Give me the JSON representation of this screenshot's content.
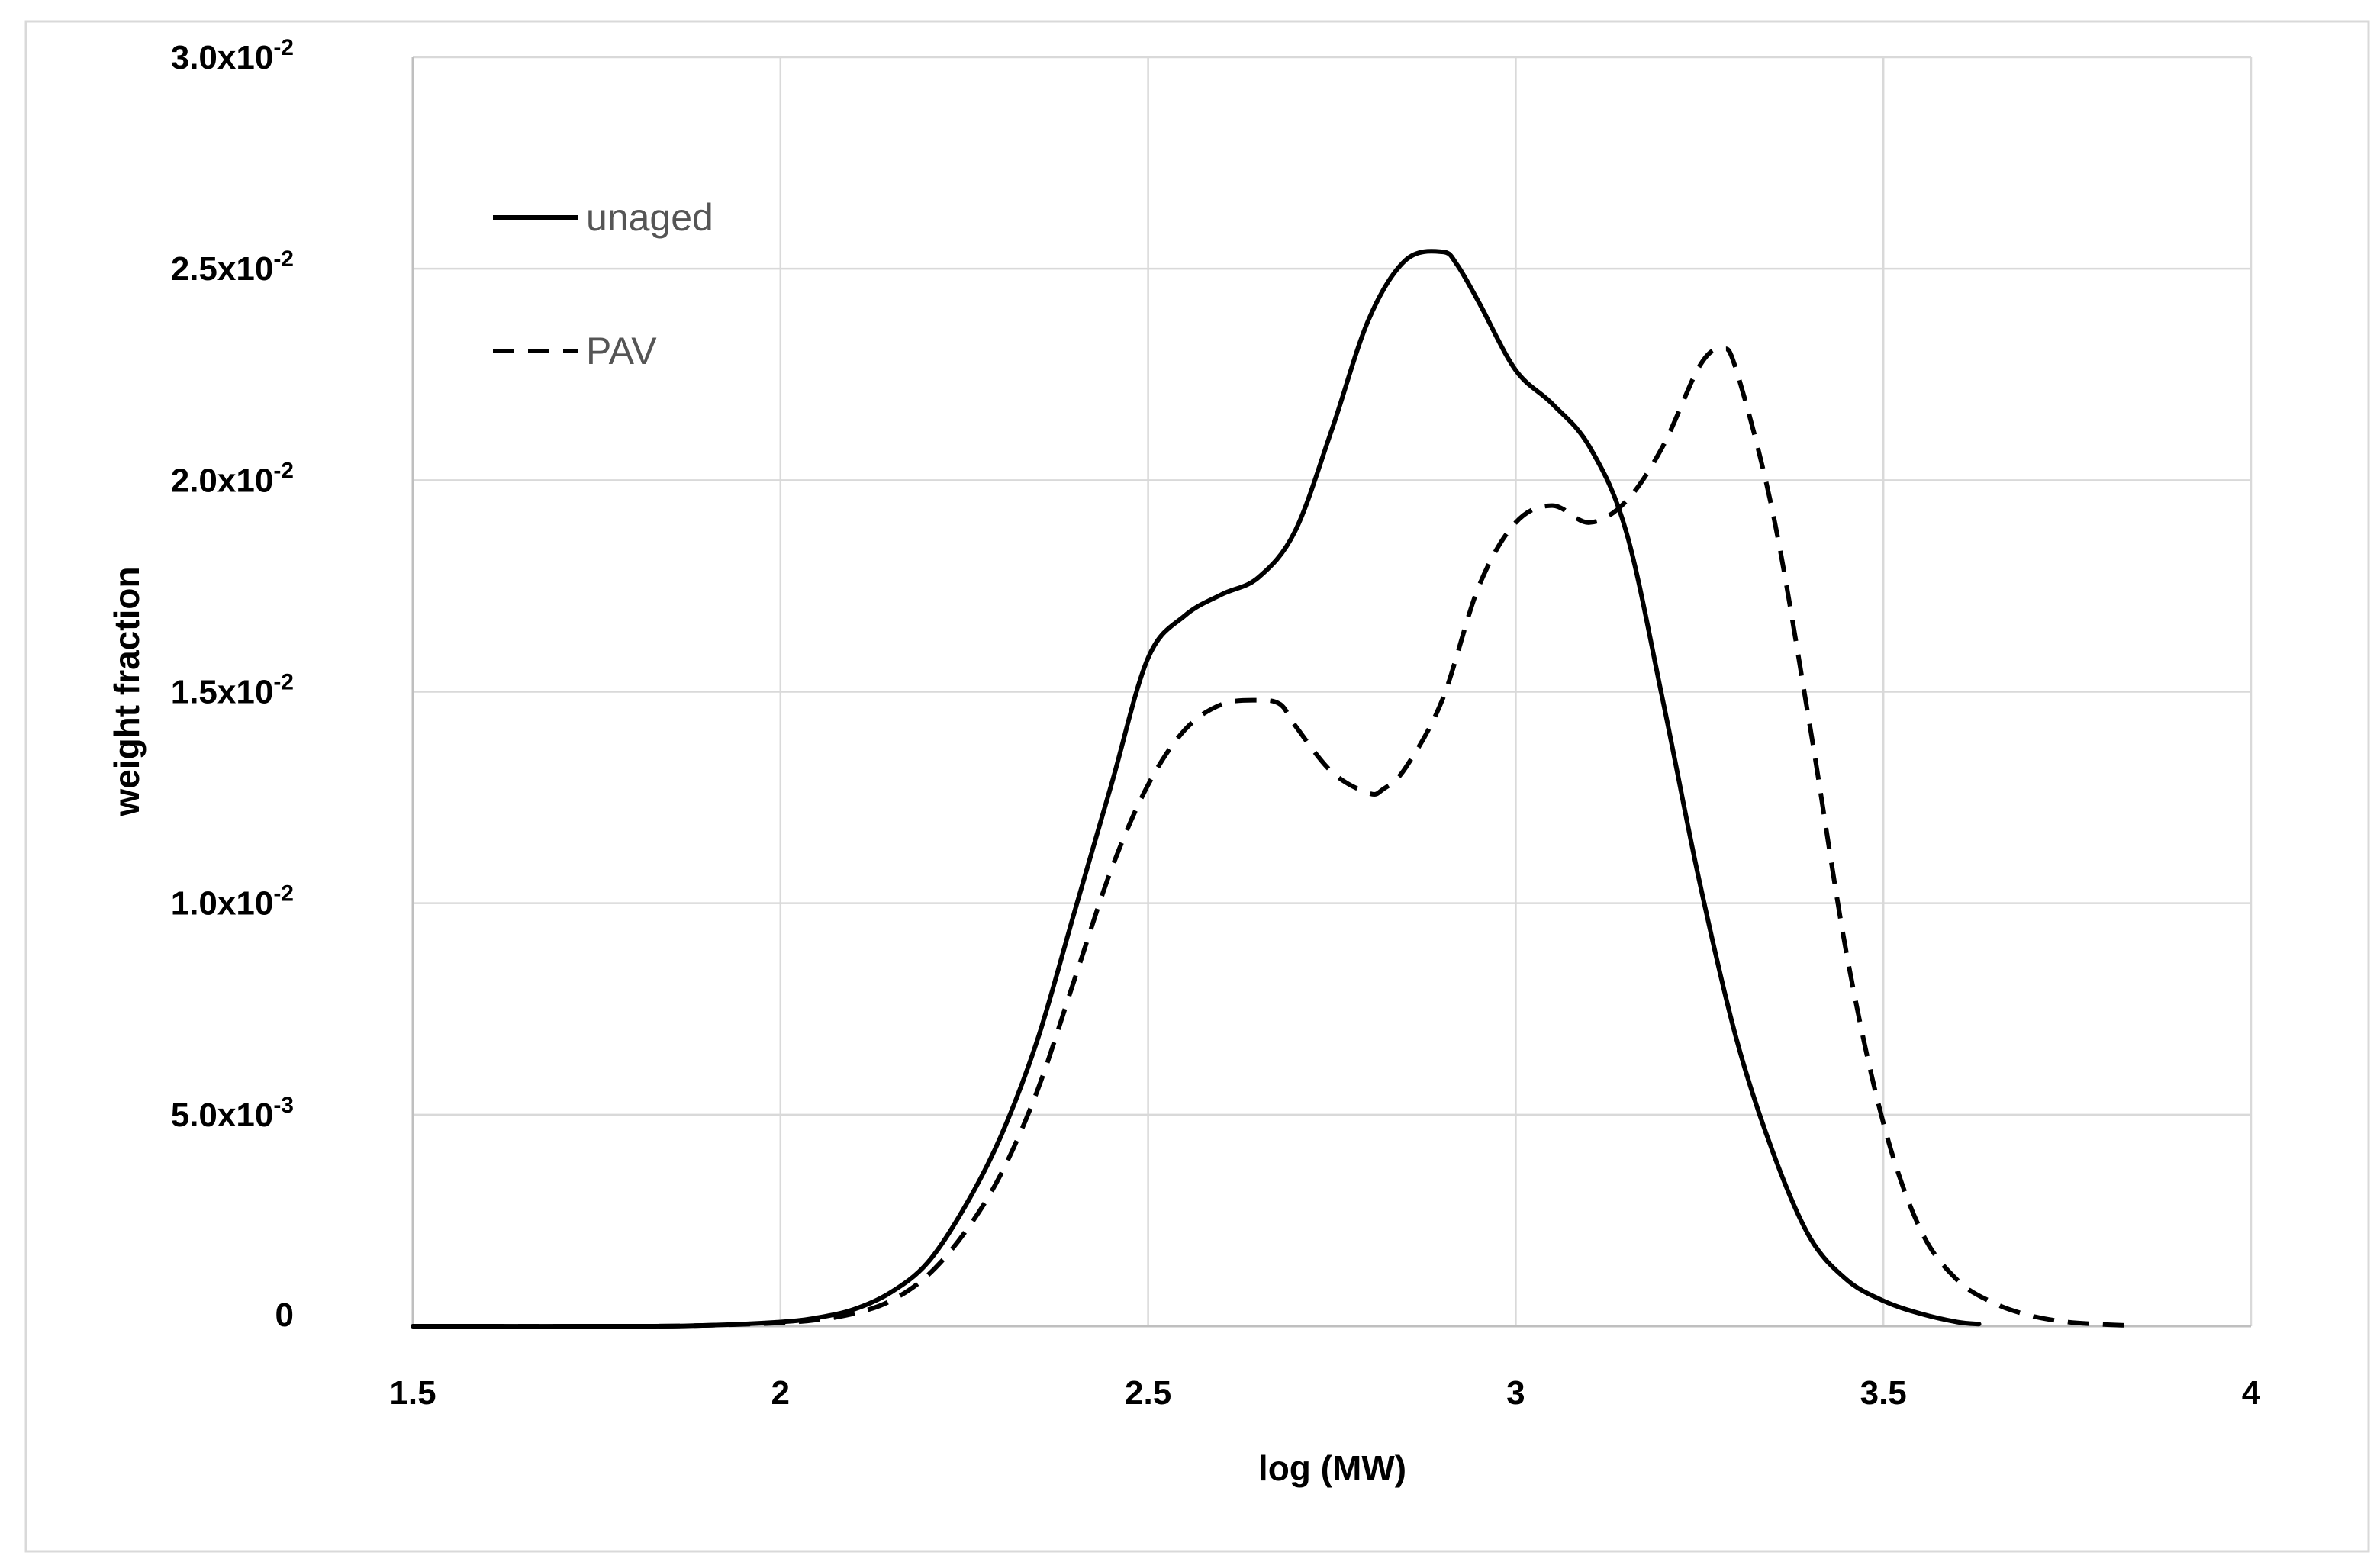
{
  "chart_data": {
    "type": "line",
    "title": "",
    "xlabel": "log (MW)",
    "ylabel": "weight fraction",
    "xlim": [
      1.5,
      4
    ],
    "ylim": [
      0,
      0.03
    ],
    "grid": true,
    "legend_position": "top-left",
    "x_ticks": [
      {
        "value": 1.5,
        "label": "1.5"
      },
      {
        "value": 2,
        "label": "2"
      },
      {
        "value": 2.5,
        "label": "2.5"
      },
      {
        "value": 3,
        "label": "3"
      },
      {
        "value": 3.5,
        "label": "3.5"
      },
      {
        "value": 4,
        "label": "4"
      }
    ],
    "y_ticks": [
      {
        "value": 0,
        "mantissa": "0",
        "exponent": ""
      },
      {
        "value": 0.005,
        "mantissa": "5.0x10",
        "exponent": "-3"
      },
      {
        "value": 0.01,
        "mantissa": "1.0x10",
        "exponent": "-2"
      },
      {
        "value": 0.015,
        "mantissa": "1.5x10",
        "exponent": "-2"
      },
      {
        "value": 0.02,
        "mantissa": "2.0x10",
        "exponent": "-2"
      },
      {
        "value": 0.025,
        "mantissa": "2.5x10",
        "exponent": "-2"
      },
      {
        "value": 0.03,
        "mantissa": "3.0x10",
        "exponent": "-2"
      }
    ],
    "series": [
      {
        "name": "unaged",
        "style": "solid",
        "color": "#000000",
        "x": [
          1.5,
          1.8,
          1.9,
          2.0,
          2.05,
          2.1,
          2.15,
          2.2,
          2.25,
          2.3,
          2.35,
          2.4,
          2.45,
          2.5,
          2.55,
          2.6,
          2.65,
          2.7,
          2.75,
          2.8,
          2.85,
          2.9,
          2.92,
          2.95,
          3.0,
          3.05,
          3.1,
          3.15,
          3.2,
          3.25,
          3.3,
          3.35,
          3.4,
          3.45,
          3.5,
          3.55,
          3.6,
          3.63
        ],
        "values": [
          0,
          0,
          2e-05,
          0.0001,
          0.0002,
          0.0004,
          0.0008,
          0.0015,
          0.0028,
          0.0045,
          0.0068,
          0.0098,
          0.0128,
          0.0158,
          0.0168,
          0.0173,
          0.0177,
          0.0188,
          0.0212,
          0.0238,
          0.0252,
          0.0254,
          0.0251,
          0.0242,
          0.0226,
          0.0218,
          0.0208,
          0.0188,
          0.0148,
          0.0105,
          0.0068,
          0.0041,
          0.0021,
          0.0011,
          0.0006,
          0.0003,
          0.0001,
          5e-05
        ]
      },
      {
        "name": "PAV",
        "style": "dashed",
        "color": "#000000",
        "x": [
          1.5,
          1.8,
          1.9,
          2.0,
          2.05,
          2.1,
          2.15,
          2.2,
          2.25,
          2.3,
          2.35,
          2.4,
          2.45,
          2.5,
          2.55,
          2.6,
          2.65,
          2.68,
          2.7,
          2.75,
          2.8,
          2.82,
          2.85,
          2.9,
          2.95,
          3.0,
          3.05,
          3.1,
          3.15,
          3.2,
          3.25,
          3.28,
          3.3,
          3.35,
          3.4,
          3.45,
          3.5,
          3.55,
          3.6,
          3.65,
          3.7,
          3.75,
          3.8,
          3.83
        ],
        "values": [
          0,
          0,
          2e-05,
          8e-05,
          0.00015,
          0.0003,
          0.0006,
          0.0012,
          0.0022,
          0.0036,
          0.0056,
          0.0082,
          0.0108,
          0.0128,
          0.0141,
          0.0147,
          0.0148,
          0.0147,
          0.0142,
          0.0131,
          0.0126,
          0.0127,
          0.0132,
          0.0148,
          0.0175,
          0.019,
          0.0194,
          0.019,
          0.0195,
          0.0208,
          0.0227,
          0.0231,
          0.0226,
          0.0192,
          0.0142,
          0.0088,
          0.0048,
          0.0023,
          0.0011,
          0.00055,
          0.00025,
          0.0001,
          4e-05,
          2e-05
        ]
      }
    ]
  }
}
